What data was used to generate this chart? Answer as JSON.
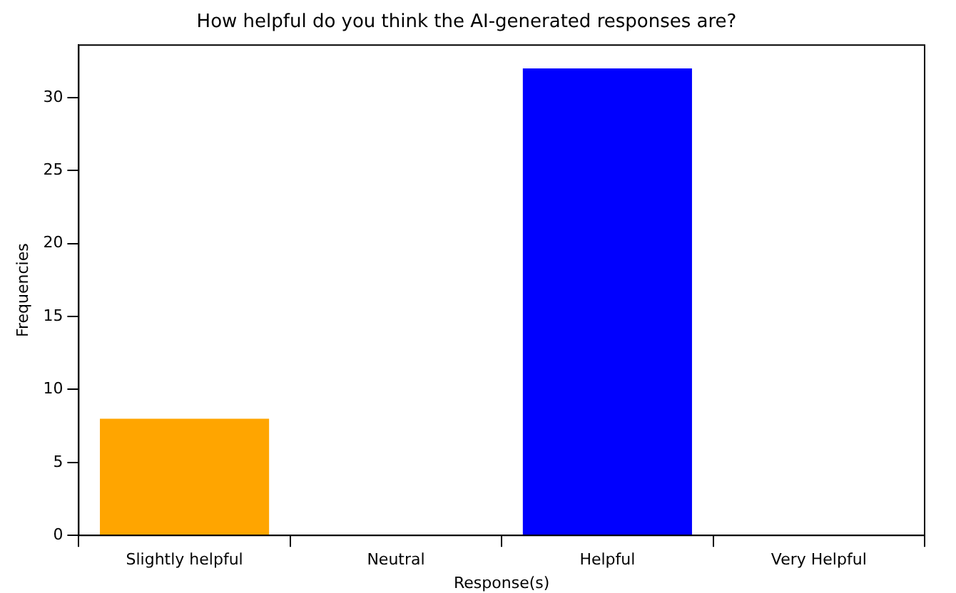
{
  "chart_data": {
    "type": "bar",
    "title": "How helpful do you think the AI-generated responses are?",
    "xlabel": "Response(s)",
    "ylabel": "Frequencies",
    "categories": [
      "Slightly helpful",
      "Neutral",
      "Helpful",
      "Very Helpful"
    ],
    "values": [
      8,
      0,
      32,
      0
    ],
    "colors": [
      "#ffa500",
      "#808080",
      "#0000ff",
      "#008000"
    ],
    "ylim": [
      0,
      33.6
    ],
    "yticks": [
      0,
      5,
      10,
      15,
      20,
      25,
      30
    ],
    "grid": false,
    "legend": false
  }
}
